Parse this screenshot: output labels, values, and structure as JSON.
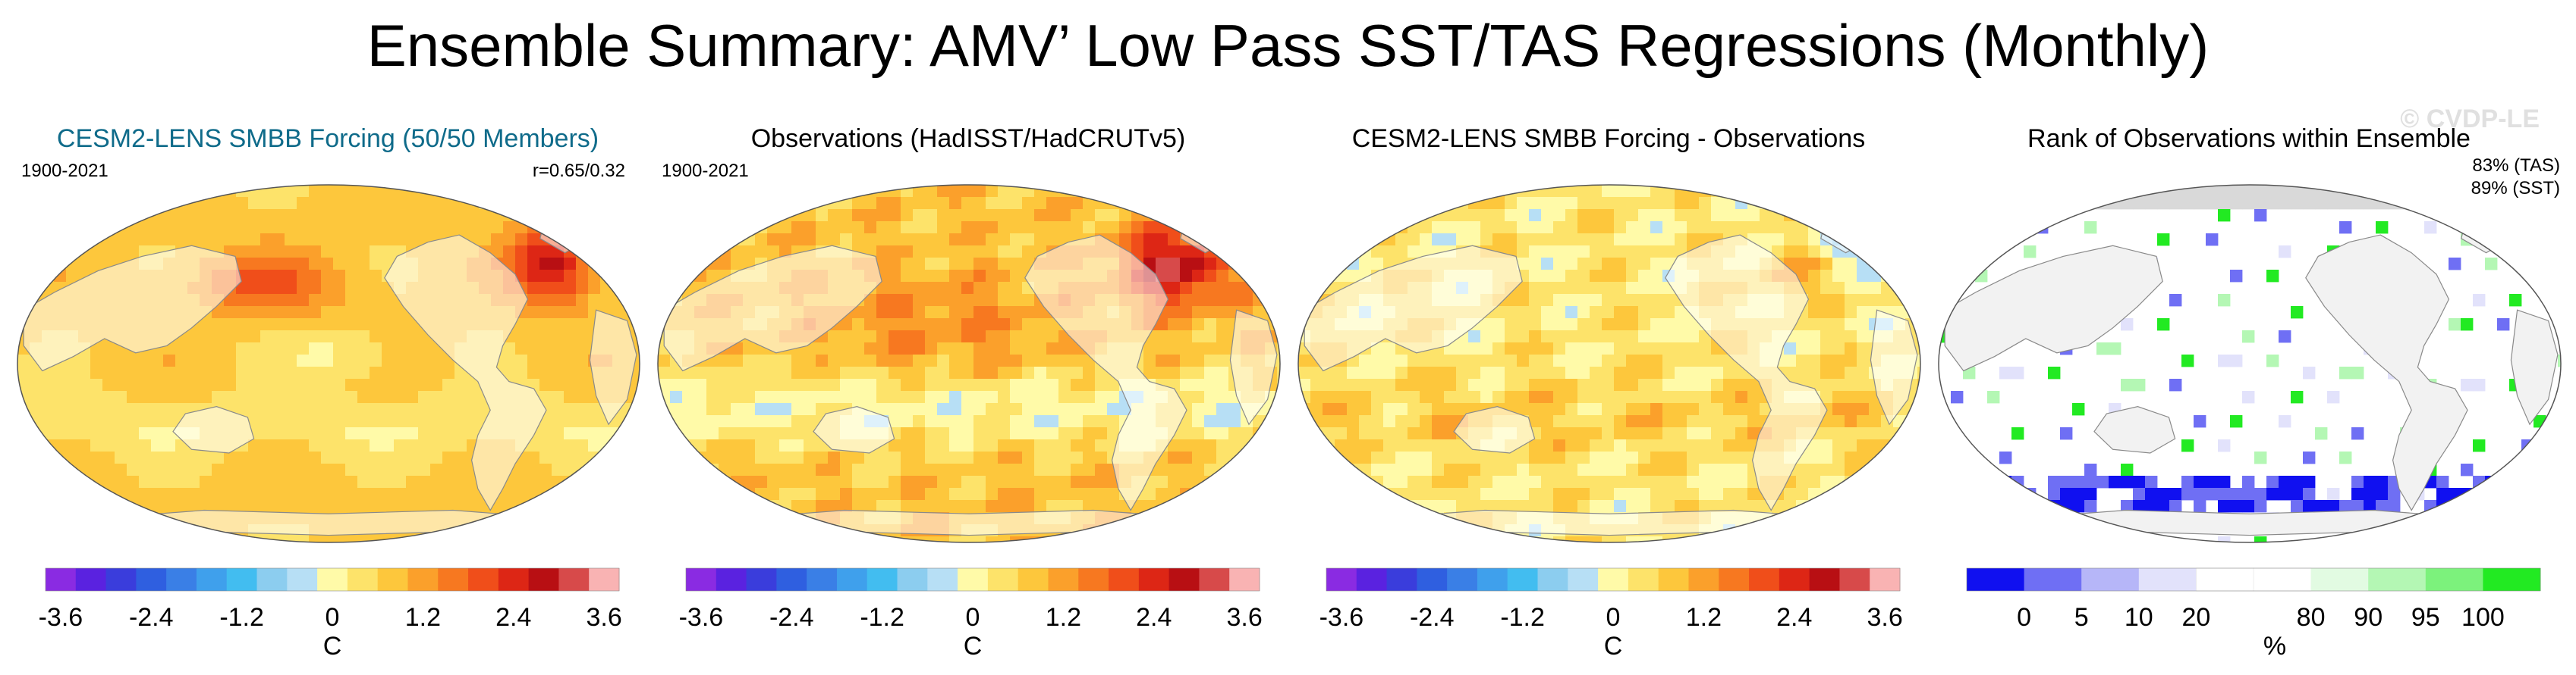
{
  "title": "Ensemble Summary: AMV’ Low Pass SST/TAS Regressions (Monthly)",
  "watermark": "© CVDP-LE",
  "chart_data": [
    {
      "type": "heatmap",
      "title": "CESM2-LENS SMBB Forcing (50/50 Members)",
      "title_color": "#0f6b8a",
      "period": "1900-2021",
      "annotation": "r=0.65/0.32",
      "colorbar": {
        "unit": "C",
        "tick_labels": [
          "-3.6",
          "-2.4",
          "-1.2",
          "0",
          "1.2",
          "2.4",
          "3.6"
        ],
        "colors": [
          "#8a2be2",
          "#5a22e0",
          "#3a3ddc",
          "#2f5fe0",
          "#3a7fe6",
          "#3fa0ec",
          "#42bdf0",
          "#8ccdef",
          "#b7dff5",
          "#fffaa8",
          "#fde36a",
          "#fdc73c",
          "#fba02b",
          "#f77820",
          "#f04e1a",
          "#dd2615",
          "#b80f13",
          "#d74a4a",
          "#f9b3b3"
        ]
      },
      "field": "ensemble regression pattern"
    },
    {
      "type": "heatmap",
      "title": "Observations (HadISST/HadCRUTv5)",
      "title_color": "#000000",
      "period": "1900-2021",
      "colorbar": {
        "unit": "C",
        "tick_labels": [
          "-3.6",
          "-2.4",
          "-1.2",
          "0",
          "1.2",
          "2.4",
          "3.6"
        ],
        "colors": [
          "#8a2be2",
          "#5a22e0",
          "#3a3ddc",
          "#2f5fe0",
          "#3a7fe6",
          "#3fa0ec",
          "#42bdf0",
          "#8ccdef",
          "#b7dff5",
          "#fffaa8",
          "#fde36a",
          "#fdc73c",
          "#fba02b",
          "#f77820",
          "#f04e1a",
          "#dd2615",
          "#b80f13",
          "#d74a4a",
          "#f9b3b3"
        ]
      },
      "field": "observed regression pattern"
    },
    {
      "type": "heatmap",
      "title": "CESM2-LENS SMBB Forcing - Observations",
      "title_color": "#000000",
      "colorbar": {
        "unit": "C",
        "tick_labels": [
          "-3.6",
          "-2.4",
          "-1.2",
          "0",
          "1.2",
          "2.4",
          "3.6"
        ],
        "colors": [
          "#8a2be2",
          "#5a22e0",
          "#3a3ddc",
          "#2f5fe0",
          "#3a7fe6",
          "#3fa0ec",
          "#42bdf0",
          "#8ccdef",
          "#b7dff5",
          "#fffaa8",
          "#fde36a",
          "#fdc73c",
          "#fba02b",
          "#f77820",
          "#f04e1a",
          "#dd2615",
          "#b80f13",
          "#d74a4a",
          "#f9b3b3"
        ]
      },
      "field": "difference pattern"
    },
    {
      "type": "heatmap",
      "title": "Rank of Observations within Ensemble",
      "title_color": "#000000",
      "stats": [
        "83% (TAS)",
        "89% (SST)"
      ],
      "colorbar": {
        "unit": "%",
        "tick_labels": [
          "0",
          "5",
          "10",
          "20",
          "80",
          "90",
          "95",
          "100"
        ],
        "colors": [
          "#1010f0",
          "#6f6ff4",
          "#b6b6f8",
          "#e2e2fb",
          "#ffffff",
          "#ffffff",
          "#e2fbe2",
          "#b4f7b4",
          "#7cf27c",
          "#22ea22"
        ]
      },
      "field": "rank percentile"
    }
  ]
}
